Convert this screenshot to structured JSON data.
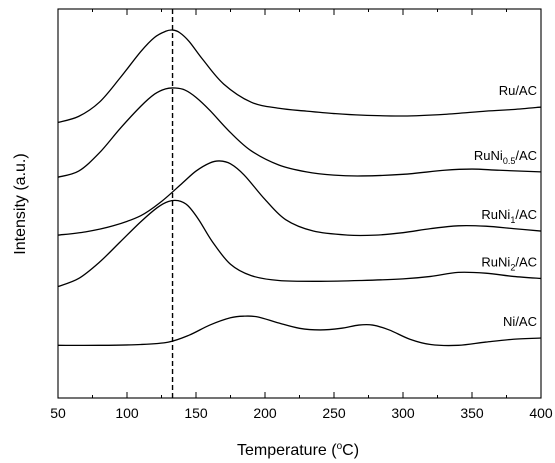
{
  "chart_data": {
    "type": "line",
    "xlabel": "Temperature",
    "xlabel_unit": "(°C)",
    "xlabel_unit_open": "(",
    "xlabel_unit_degree": "o",
    "xlabel_unit_close": "C)",
    "ylabel": "Intensity (a.u.)",
    "xlim": [
      50,
      400
    ],
    "xticks": [
      50,
      100,
      150,
      200,
      250,
      300,
      350,
      400
    ],
    "y_ticks_shown": false,
    "grid": false,
    "legend": "inline labels at right end of each curve",
    "stacked_offset": true,
    "reference_line": {
      "x": 133,
      "style": "dashed"
    },
    "series": [
      {
        "name": "Ru/AC",
        "name_parts": {
          "base": "Ru/AC",
          "sub": "",
          "tail": ""
        },
        "baseline": 5.5,
        "x": [
          50,
          65,
          80,
          95,
          110,
          120,
          128,
          133,
          138,
          145,
          155,
          170,
          190,
          210,
          230,
          250,
          270,
          300,
          330,
          360,
          380,
          400
        ],
        "y": [
          5.5,
          5.65,
          6.0,
          6.6,
          7.25,
          7.6,
          7.75,
          7.78,
          7.72,
          7.5,
          7.05,
          6.45,
          6.0,
          5.85,
          5.78,
          5.72,
          5.68,
          5.66,
          5.7,
          5.78,
          5.82,
          5.88
        ]
      },
      {
        "name": "RuNi0.5/AC",
        "name_parts": {
          "base": "RuNi",
          "sub": "0.5",
          "tail": "/AC"
        },
        "baseline": 4.1,
        "x": [
          50,
          65,
          80,
          95,
          110,
          120,
          128,
          135,
          142,
          150,
          160,
          175,
          190,
          210,
          230,
          250,
          270,
          300,
          330,
          350,
          370,
          400
        ],
        "y": [
          4.15,
          4.3,
          4.75,
          5.35,
          5.9,
          6.2,
          6.33,
          6.35,
          6.3,
          6.12,
          5.8,
          5.25,
          4.8,
          4.45,
          4.28,
          4.2,
          4.18,
          4.22,
          4.32,
          4.35,
          4.32,
          4.28
        ]
      },
      {
        "name": "RuNi1/AC",
        "name_parts": {
          "base": "RuNi",
          "sub": "1",
          "tail": "/AC"
        },
        "baseline": 2.7,
        "x": [
          50,
          70,
          90,
          110,
          125,
          140,
          150,
          160,
          167,
          175,
          185,
          200,
          215,
          235,
          260,
          280,
          300,
          320,
          340,
          360,
          380,
          400
        ],
        "y": [
          2.72,
          2.8,
          2.95,
          3.2,
          3.55,
          4.0,
          4.3,
          4.5,
          4.55,
          4.48,
          4.2,
          3.6,
          3.1,
          2.82,
          2.72,
          2.72,
          2.78,
          2.88,
          2.95,
          2.94,
          2.88,
          2.82
        ]
      },
      {
        "name": "RuNi2/AC",
        "name_parts": {
          "base": "RuNi",
          "sub": "2",
          "tail": "/AC"
        },
        "baseline": 1.4,
        "x": [
          50,
          65,
          80,
          95,
          110,
          122,
          130,
          137,
          144,
          152,
          162,
          175,
          190,
          210,
          240,
          270,
          300,
          320,
          340,
          360,
          380,
          400
        ],
        "y": [
          1.45,
          1.65,
          2.05,
          2.55,
          3.05,
          3.4,
          3.55,
          3.57,
          3.45,
          3.1,
          2.55,
          2.0,
          1.72,
          1.6,
          1.58,
          1.6,
          1.64,
          1.7,
          1.8,
          1.78,
          1.7,
          1.65
        ]
      },
      {
        "name": "Ni/AC",
        "name_parts": {
          "base": "Ni/AC",
          "sub": "",
          "tail": ""
        },
        "baseline": 0.0,
        "x": [
          50,
          80,
          110,
          130,
          145,
          160,
          175,
          185,
          195,
          210,
          225,
          240,
          255,
          268,
          278,
          290,
          305,
          320,
          340,
          360,
          380,
          400
        ],
        "y": [
          0.0,
          0.0,
          0.02,
          0.08,
          0.25,
          0.5,
          0.68,
          0.72,
          0.7,
          0.55,
          0.42,
          0.38,
          0.42,
          0.5,
          0.5,
          0.38,
          0.15,
          0.02,
          0.0,
          0.08,
          0.15,
          0.18
        ]
      }
    ]
  }
}
